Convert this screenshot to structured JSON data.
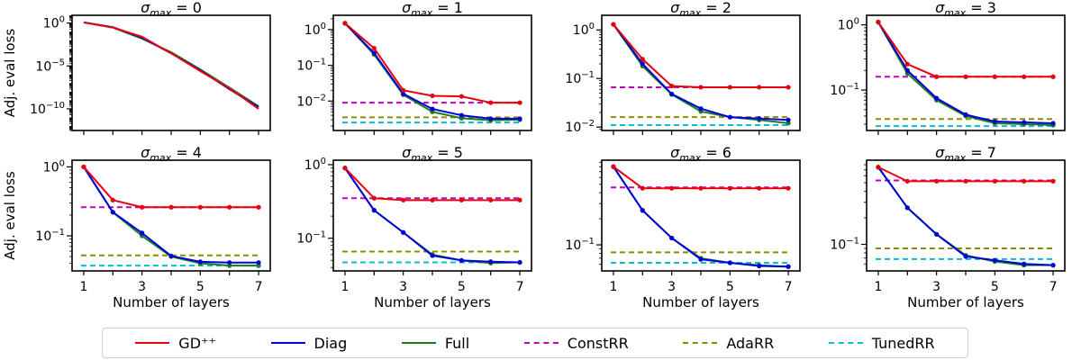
{
  "colors": {
    "GD++": "#e8000b",
    "Diag": "#0000dd",
    "Full": "#1a7f1a",
    "ConstRR": "#c000c0",
    "AdaRR": "#8c8c00",
    "TunedRR": "#00bcd4"
  },
  "legend": [
    {
      "name": "GD⁺⁺",
      "color_key": "GD++",
      "dashed": false
    },
    {
      "name": "Diag",
      "color_key": "Diag",
      "dashed": false
    },
    {
      "name": "Full",
      "color_key": "Full",
      "dashed": false
    },
    {
      "name": "ConstRR",
      "color_key": "ConstRR",
      "dashed": true
    },
    {
      "name": "AdaRR",
      "color_key": "AdaRR",
      "dashed": true
    },
    {
      "name": "TunedRR",
      "color_key": "TunedRR",
      "dashed": true
    }
  ],
  "chart_data": [
    {
      "type": "line",
      "title": "σmax = 0",
      "title_sub": "0",
      "yscale": "log",
      "ylabel": "Adj. eval loss",
      "xlabel": "",
      "x": [
        1,
        2,
        3,
        4,
        5,
        6,
        7
      ],
      "xlim": [
        0.6,
        7.4
      ],
      "ylim": [
        3e-13,
        8
      ],
      "yticks": [
        {
          "v": 1,
          "label": "10^0"
        },
        {
          "v": 1e-05,
          "label": "10^-5"
        },
        {
          "v": 1e-10,
          "label": "10^-10"
        }
      ],
      "xticks_labeled": false,
      "series": [
        {
          "name": "Full",
          "values": [
            1.2,
            0.3,
            0.015,
            0.0004,
            4e-06,
            3e-08,
            2e-10
          ],
          "markers": false
        },
        {
          "name": "Diag",
          "values": [
            1.2,
            0.33,
            0.02,
            0.0003,
            3e-06,
            2e-08,
            1.5e-10
          ],
          "markers": false
        },
        {
          "name": "GD++",
          "values": [
            1.2,
            0.3,
            0.025,
            0.0003,
            2.5e-06,
            2.5e-08,
            1e-10
          ],
          "markers": false
        }
      ],
      "baselines": []
    },
    {
      "type": "line",
      "title": "σmax = 1",
      "title_sub": "1",
      "yscale": "log",
      "ylabel": "",
      "xlabel": "",
      "x": [
        1,
        2,
        3,
        4,
        5,
        6,
        7
      ],
      "xlim": [
        0.6,
        7.4
      ],
      "ylim": [
        0.0015,
        2.5
      ],
      "yticks": [
        {
          "v": 1,
          "label": "10^0"
        },
        {
          "v": 0.1,
          "label": "10^-1"
        },
        {
          "v": 0.01,
          "label": "10^-2"
        }
      ],
      "xticks_labeled": false,
      "series": [
        {
          "name": "Full",
          "values": [
            1.5,
            0.2,
            0.015,
            0.005,
            0.0033,
            0.0029,
            0.003
          ],
          "markers": true
        },
        {
          "name": "Diag",
          "values": [
            1.5,
            0.22,
            0.016,
            0.006,
            0.004,
            0.0032,
            0.0032
          ],
          "markers": true
        },
        {
          "name": "GD++",
          "values": [
            1.5,
            0.3,
            0.02,
            0.014,
            0.0135,
            0.009,
            0.009
          ],
          "markers": true
        }
      ],
      "baselines": [
        {
          "name": "ConstRR",
          "value": 0.009
        },
        {
          "name": "AdaRR",
          "value": 0.0035
        },
        {
          "name": "TunedRR",
          "value": 0.0025
        }
      ]
    },
    {
      "type": "line",
      "title": "σmax = 2",
      "title_sub": "2",
      "yscale": "log",
      "ylabel": "",
      "xlabel": "",
      "x": [
        1,
        2,
        3,
        4,
        5,
        6,
        7
      ],
      "xlim": [
        0.6,
        7.4
      ],
      "ylim": [
        0.0085,
        2.0
      ],
      "yticks": [
        {
          "v": 1,
          "label": "10^0"
        },
        {
          "v": 0.1,
          "label": "10^-1"
        },
        {
          "v": 0.01,
          "label": "10^-2"
        }
      ],
      "xticks_labeled": false,
      "series": [
        {
          "name": "Full",
          "values": [
            1.3,
            0.18,
            0.047,
            0.021,
            0.016,
            0.014,
            0.012
          ],
          "markers": true
        },
        {
          "name": "Diag",
          "values": [
            1.3,
            0.2,
            0.048,
            0.024,
            0.016,
            0.015,
            0.014
          ],
          "markers": true
        },
        {
          "name": "GD++",
          "values": [
            1.3,
            0.25,
            0.07,
            0.066,
            0.066,
            0.066,
            0.066
          ],
          "markers": true
        }
      ],
      "baselines": [
        {
          "name": "ConstRR",
          "value": 0.066
        },
        {
          "name": "AdaRR",
          "value": 0.016
        },
        {
          "name": "TunedRR",
          "value": 0.011
        }
      ]
    },
    {
      "type": "line",
      "title": "σmax = 3",
      "title_sub": "3",
      "yscale": "log",
      "ylabel": "",
      "xlabel": "",
      "x": [
        1,
        2,
        3,
        4,
        5,
        6,
        7
      ],
      "xlim": [
        0.6,
        7.4
      ],
      "ylim": [
        0.024,
        1.4
      ],
      "yticks": [
        {
          "v": 1,
          "label": "10^0"
        },
        {
          "v": 0.1,
          "label": "10^-1"
        }
      ],
      "xticks_labeled": false,
      "series": [
        {
          "name": "Full",
          "values": [
            1.1,
            0.18,
            0.07,
            0.04,
            0.031,
            0.03,
            0.029
          ],
          "markers": true
        },
        {
          "name": "Diag",
          "values": [
            1.1,
            0.2,
            0.075,
            0.042,
            0.033,
            0.032,
            0.031
          ],
          "markers": true
        },
        {
          "name": "GD++",
          "values": [
            1.1,
            0.25,
            0.16,
            0.16,
            0.16,
            0.16,
            0.16
          ],
          "markers": true
        }
      ],
      "baselines": [
        {
          "name": "ConstRR",
          "value": 0.16
        },
        {
          "name": "AdaRR",
          "value": 0.036
        },
        {
          "name": "TunedRR",
          "value": 0.028
        }
      ]
    },
    {
      "type": "line",
      "title": "σmax = 4",
      "title_sub": "4",
      "yscale": "log",
      "ylabel": "Adj. eval loss",
      "xlabel": "Number of layers",
      "x": [
        1,
        2,
        3,
        4,
        5,
        6,
        7
      ],
      "xlim": [
        0.6,
        7.4
      ],
      "ylim": [
        0.031,
        1.25
      ],
      "yticks": [
        {
          "v": 1,
          "label": "10^0"
        },
        {
          "v": 0.1,
          "label": "10^-1"
        }
      ],
      "xticks_labeled": true,
      "xticks": [
        1,
        3,
        5,
        7
      ],
      "series": [
        {
          "name": "Full",
          "values": [
            1.0,
            0.22,
            0.1,
            0.05,
            0.04,
            0.037,
            0.037
          ],
          "markers": true
        },
        {
          "name": "Diag",
          "values": [
            1.0,
            0.22,
            0.11,
            0.051,
            0.042,
            0.041,
            0.041
          ],
          "markers": true
        },
        {
          "name": "GD++",
          "values": [
            1.0,
            0.33,
            0.26,
            0.26,
            0.26,
            0.26,
            0.26
          ],
          "markers": true
        }
      ],
      "baselines": [
        {
          "name": "ConstRR",
          "value": 0.26
        },
        {
          "name": "AdaRR",
          "value": 0.052
        },
        {
          "name": "TunedRR",
          "value": 0.037
        }
      ]
    },
    {
      "type": "line",
      "title": "σmax = 5",
      "title_sub": "5",
      "yscale": "log",
      "ylabel": "",
      "xlabel": "Number of layers",
      "x": [
        1,
        2,
        3,
        4,
        5,
        6,
        7
      ],
      "xlim": [
        0.6,
        7.4
      ],
      "ylim": [
        0.036,
        1.15
      ],
      "yticks": [
        {
          "v": 1,
          "label": "10^0"
        },
        {
          "v": 0.1,
          "label": "10^-1"
        }
      ],
      "xticks_labeled": true,
      "xticks": [
        1,
        3,
        5,
        7
      ],
      "series": [
        {
          "name": "Full",
          "values": [
            0.9,
            0.24,
            0.12,
            0.06,
            0.05,
            0.046,
            0.047
          ],
          "markers": true
        },
        {
          "name": "Diag",
          "values": [
            0.9,
            0.24,
            0.12,
            0.058,
            0.05,
            0.048,
            0.047
          ],
          "markers": true
        },
        {
          "name": "GD++",
          "values": [
            0.9,
            0.35,
            0.33,
            0.33,
            0.33,
            0.33,
            0.33
          ],
          "markers": true
        }
      ],
      "baselines": [
        {
          "name": "ConstRR",
          "value": 0.35
        },
        {
          "name": "AdaRR",
          "value": 0.066
        },
        {
          "name": "TunedRR",
          "value": 0.047
        }
      ]
    },
    {
      "type": "line",
      "title": "σmax = 6",
      "title_sub": "6",
      "yscale": "log",
      "ylabel": "",
      "xlabel": "Number of layers",
      "x": [
        1,
        2,
        3,
        4,
        5,
        6,
        7
      ],
      "xlim": [
        0.6,
        7.4
      ],
      "ylim": [
        0.05,
        0.95
      ],
      "yticks": [
        {
          "v": 0.1,
          "label": "10^-1"
        }
      ],
      "xticks_labeled": true,
      "xticks": [
        1,
        3,
        5,
        7
      ],
      "series": [
        {
          "name": "Full",
          "values": [
            0.8,
            0.25,
            0.12,
            0.07,
            0.062,
            0.058,
            0.056
          ],
          "markers": true
        },
        {
          "name": "Diag",
          "values": [
            0.8,
            0.25,
            0.12,
            0.068,
            0.062,
            0.057,
            0.056
          ],
          "markers": true
        },
        {
          "name": "GD++",
          "values": [
            0.8,
            0.45,
            0.45,
            0.45,
            0.45,
            0.45,
            0.45
          ],
          "markers": true
        }
      ],
      "baselines": [
        {
          "name": "ConstRR",
          "value": 0.46
        },
        {
          "name": "AdaRR",
          "value": 0.082
        },
        {
          "name": "TunedRR",
          "value": 0.062
        }
      ]
    },
    {
      "type": "line",
      "title": "σmax = 7",
      "title_sub": "7",
      "yscale": "log",
      "ylabel": "",
      "xlabel": "Number of layers",
      "x": [
        1,
        2,
        3,
        4,
        5,
        6,
        7
      ],
      "xlim": [
        0.6,
        7.4
      ],
      "ylim": [
        0.05,
        0.9
      ],
      "yticks": [
        {
          "v": 0.1,
          "label": "10^-1"
        }
      ],
      "xticks_labeled": true,
      "xticks": [
        1,
        3,
        5,
        7
      ],
      "series": [
        {
          "name": "Full",
          "values": [
            0.75,
            0.26,
            0.13,
            0.075,
            0.064,
            0.058,
            0.058
          ],
          "markers": true
        },
        {
          "name": "Diag",
          "values": [
            0.75,
            0.26,
            0.13,
            0.073,
            0.066,
            0.06,
            0.058
          ],
          "markers": true
        },
        {
          "name": "GD++",
          "values": [
            0.75,
            0.52,
            0.52,
            0.52,
            0.52,
            0.52,
            0.52
          ],
          "markers": true
        }
      ],
      "baselines": [
        {
          "name": "ConstRR",
          "value": 0.53
        },
        {
          "name": "AdaRR",
          "value": 0.09
        },
        {
          "name": "TunedRR",
          "value": 0.068
        }
      ]
    }
  ]
}
